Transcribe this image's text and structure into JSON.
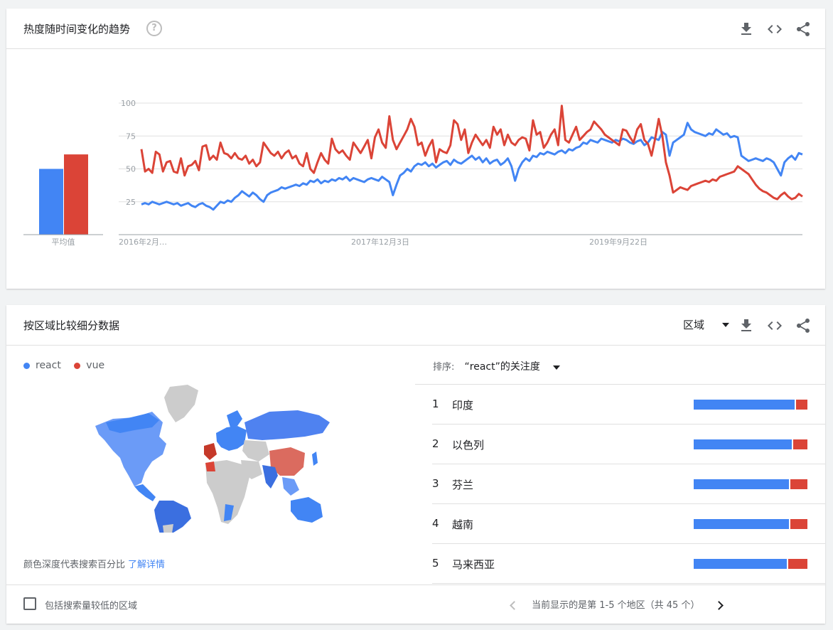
{
  "colors": {
    "react": "#4285f4",
    "vue": "#db4437",
    "grid": "#e0e0e0",
    "axis_text": "#9aa0a6",
    "map_gray": "#cccccc"
  },
  "trend_card": {
    "title": "热度随时间变化的趋势",
    "help_icon": "help-circle-icon",
    "toolbar": {
      "download_icon": "download-icon",
      "embed_icon": "code-icon",
      "share_icon": "share-icon"
    }
  },
  "chart_data": {
    "type": "line",
    "xlabel": "",
    "ylabel": "",
    "ylim": [
      0,
      100
    ],
    "yticks": [
      "100",
      "75",
      "50",
      "25"
    ],
    "xticks": [
      "2016年2月…",
      "2017年12月3日",
      "2019年9月22日"
    ],
    "x_range": [
      "2016-02",
      "2021-02"
    ],
    "average_label": "平均值",
    "averages": [
      {
        "name": "react",
        "value": 50
      },
      {
        "name": "vue",
        "value": 61
      }
    ],
    "series": [
      {
        "name": "react",
        "values": [
          23,
          24,
          23,
          25,
          24,
          23,
          24,
          25,
          24,
          23,
          24,
          22,
          23,
          24,
          22,
          21,
          23,
          24,
          22,
          21,
          19,
          22,
          25,
          24,
          26,
          25,
          28,
          30,
          33,
          31,
          29,
          32,
          30,
          27,
          25,
          30,
          32,
          33,
          34,
          36,
          35,
          36,
          37,
          38,
          37,
          39,
          38,
          41,
          40,
          42,
          39,
          41,
          40,
          42,
          41,
          43,
          42,
          44,
          41,
          43,
          42,
          41,
          40,
          42,
          43,
          42,
          41,
          44,
          42,
          40,
          30,
          38,
          45,
          47,
          50,
          48,
          52,
          54,
          53,
          55,
          52,
          54,
          51,
          53,
          55,
          56,
          53,
          57,
          55,
          54,
          56,
          58,
          60,
          57,
          59,
          55,
          58,
          54,
          56,
          57,
          53,
          55,
          58,
          52,
          41,
          50,
          55,
          58,
          56,
          60,
          59,
          62,
          61,
          63,
          62,
          61,
          63,
          64,
          62,
          65,
          64,
          66,
          67,
          70,
          69,
          72,
          71,
          70,
          73,
          72,
          71,
          70,
          72,
          71,
          73,
          72,
          70,
          69,
          71,
          72,
          68,
          70,
          74,
          73,
          72,
          78,
          76,
          60,
          70,
          72,
          74,
          76,
          85,
          80,
          78,
          77,
          76,
          75,
          77,
          76,
          80,
          78,
          76,
          77,
          74,
          75,
          74,
          60,
          58,
          56,
          57,
          58,
          57,
          56,
          58,
          57,
          55,
          50,
          45,
          55,
          58,
          60,
          57,
          62,
          61
        ]
      },
      {
        "name": "vue",
        "values": [
          65,
          48,
          50,
          47,
          63,
          61,
          48,
          55,
          56,
          48,
          47,
          58,
          45,
          52,
          53,
          56,
          49,
          67,
          68,
          57,
          60,
          57,
          70,
          62,
          61,
          58,
          62,
          58,
          57,
          60,
          54,
          57,
          52,
          55,
          70,
          66,
          62,
          60,
          63,
          58,
          62,
          64,
          58,
          60,
          54,
          52,
          62,
          50,
          47,
          55,
          62,
          57,
          54,
          73,
          65,
          62,
          64,
          60,
          57,
          70,
          66,
          62,
          67,
          72,
          58,
          74,
          80,
          70,
          66,
          90,
          72,
          65,
          70,
          75,
          80,
          88,
          82,
          68,
          70,
          60,
          67,
          72,
          55,
          65,
          63,
          62,
          68,
          87,
          84,
          72,
          80,
          62,
          70,
          76,
          72,
          68,
          72,
          66,
          82,
          76,
          80,
          68,
          76,
          70,
          68,
          72,
          74,
          73,
          64,
          87,
          76,
          78,
          66,
          70,
          76,
          80,
          68,
          98,
          72,
          70,
          76,
          82,
          72,
          75,
          78,
          80,
          86,
          83,
          80,
          76,
          74,
          72,
          70,
          68,
          80,
          79,
          74,
          70,
          80,
          84,
          72,
          69,
          60,
          73,
          88,
          75,
          55,
          45,
          32,
          34,
          36,
          35,
          34,
          37,
          38,
          39,
          40,
          41,
          40,
          42,
          41,
          44,
          45,
          46,
          47,
          48,
          52,
          50,
          48,
          46,
          42,
          38,
          35,
          33,
          32,
          30,
          28,
          27,
          30,
          32,
          29,
          27,
          28,
          31,
          29
        ]
      }
    ]
  },
  "region_card": {
    "title": "按区域比较细分数据",
    "region_select": "区域",
    "legend": [
      {
        "name": "react"
      },
      {
        "name": "vue"
      }
    ],
    "map_note": "颜色深度代表搜索百分比",
    "map_link": "了解详情",
    "sort_label": "排序:",
    "sort_value": "“react”的关注度",
    "rows": [
      {
        "rank": "1",
        "name": "印度",
        "react": 0.89,
        "vue": 0.11
      },
      {
        "rank": "2",
        "name": "以色列",
        "react": 0.86,
        "vue": 0.14
      },
      {
        "rank": "3",
        "name": "芬兰",
        "react": 0.84,
        "vue": 0.16
      },
      {
        "rank": "4",
        "name": "越南",
        "react": 0.84,
        "vue": 0.16
      },
      {
        "rank": "5",
        "name": "马来西亚",
        "react": 0.82,
        "vue": 0.18
      }
    ],
    "include_low_volume": "包括搜索量较低的区域",
    "pager_text": "当前显示的是第 1-5 个地区（共 45 个）"
  }
}
